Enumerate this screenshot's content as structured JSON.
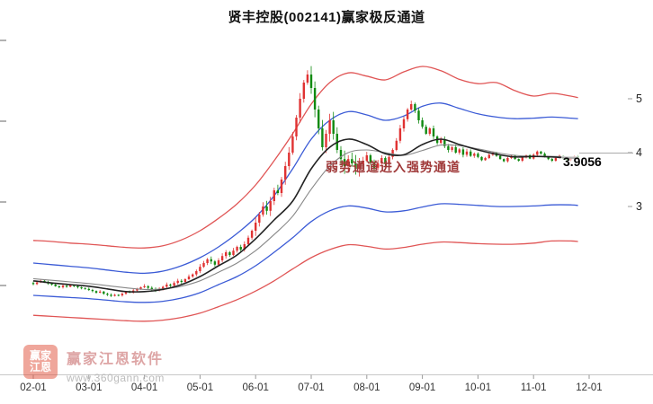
{
  "title": "贤丰控股(002141)赢家极反通道",
  "meta": {
    "stock_name": "贤丰控股",
    "stock_code": "002141",
    "indicator_name": "赢家极反通道"
  },
  "annotation": {
    "channel_signal": "弱势通道进入强势通道",
    "price_label": "3.9056"
  },
  "watermark": {
    "logo_rows": [
      "赢家",
      "江恩"
    ],
    "brand": "赢家江恩软件",
    "url": "www.360gann.com"
  },
  "colors": {
    "up_candle": "#e03232",
    "down_candle": "#108a10",
    "band_red": "#e05555",
    "band_blue": "#3b5bd6",
    "middle_dark": "#222222",
    "middle_gray": "#888888",
    "annotation_text": "#a03a3a",
    "watermark_logo": "#e0503a",
    "axis_line": "#c8c8c8",
    "axis_text": "#333333"
  },
  "chart_data": {
    "type": "candlestick",
    "title": "贤丰控股(002141)赢家极反通道",
    "x_tick_labels": [
      "02-01",
      "03-01",
      "04-01",
      "05-01",
      "06-01",
      "07-01",
      "08-01",
      "09-01",
      "10-01",
      "11-01",
      "12-01"
    ],
    "y_tick_labels": [
      "5",
      "4",
      "3"
    ],
    "y_tick_prices": [
      5,
      4,
      3
    ],
    "ylim": [
      0.6,
      6.2
    ],
    "grid": false,
    "legend": "none",
    "y_axis_side": "right",
    "candles_per_month": 15,
    "month_wick": [
      0.02,
      0.02,
      0.03,
      0.04,
      0.08,
      0.12,
      0.05,
      0.04,
      0.02,
      0.02
    ],
    "closes": [
      1.56,
      1.59,
      1.62,
      1.6,
      1.57,
      1.55,
      1.52,
      1.5,
      1.53,
      1.51,
      1.54,
      1.52,
      1.5,
      1.48,
      1.47,
      1.45,
      1.43,
      1.4,
      1.42,
      1.38,
      1.36,
      1.34,
      1.36,
      1.35,
      1.38,
      1.42,
      1.4,
      1.44,
      1.47,
      1.5,
      1.52,
      1.49,
      1.46,
      1.44,
      1.47,
      1.51,
      1.55,
      1.53,
      1.58,
      1.62,
      1.6,
      1.65,
      1.7,
      1.74,
      1.8,
      1.88,
      1.95,
      2.02,
      1.98,
      1.92,
      2.0,
      2.08,
      2.15,
      2.1,
      2.18,
      2.25,
      2.2,
      2.3,
      2.42,
      2.55,
      2.7,
      2.85,
      3.0,
      2.92,
      3.1,
      3.3,
      3.25,
      3.5,
      3.75,
      4.0,
      4.3,
      4.65,
      5.0,
      5.3,
      5.45,
      5.2,
      4.8,
      4.45,
      4.1,
      4.35,
      4.6,
      4.35,
      4.05,
      3.88,
      3.75,
      3.88,
      3.8,
      3.7,
      3.78,
      3.85,
      3.95,
      3.82,
      3.72,
      3.8,
      3.9,
      3.8,
      3.92,
      4.05,
      4.22,
      4.45,
      4.62,
      4.8,
      4.9,
      4.78,
      4.6,
      4.48,
      4.35,
      4.45,
      4.3,
      4.18,
      4.25,
      4.12,
      4.05,
      4.1,
      4.0,
      4.06,
      3.96,
      4.02,
      3.94,
      3.98,
      3.92,
      3.86,
      3.9,
      3.96,
      4.0,
      3.94,
      3.88,
      3.84,
      3.9,
      3.94,
      3.88,
      3.85,
      3.91,
      3.95,
      3.89,
      3.96,
      4.02,
      3.98,
      3.92,
      3.88,
      3.85,
      3.9,
      3.94,
      3.89,
      3.86,
      3.91,
      3.93,
      3.91
    ],
    "last_price": "3.9056",
    "bands": {
      "sample_step": 5,
      "red_upper": [
        2.37,
        2.35,
        2.32,
        2.3,
        2.27,
        2.24,
        2.23,
        2.27,
        2.38,
        2.55,
        2.78,
        3.05,
        3.4,
        3.85,
        4.35,
        4.9,
        5.3,
        5.48,
        5.42,
        5.35,
        5.5,
        5.6,
        5.52,
        5.36,
        5.28,
        5.3,
        5.15,
        5.05,
        5.1,
        5.05,
        5.02
      ],
      "blue_upper": [
        1.95,
        1.92,
        1.89,
        1.86,
        1.82,
        1.78,
        1.76,
        1.8,
        1.9,
        2.05,
        2.25,
        2.5,
        2.8,
        3.2,
        3.7,
        4.25,
        4.6,
        4.76,
        4.7,
        4.6,
        4.68,
        4.86,
        4.92,
        4.82,
        4.72,
        4.66,
        4.63,
        4.64,
        4.66,
        4.64,
        4.63
      ],
      "middle": [
        1.62,
        1.58,
        1.55,
        1.52,
        1.47,
        1.42,
        1.42,
        1.46,
        1.55,
        1.7,
        1.9,
        2.1,
        2.4,
        2.75,
        3.1,
        3.7,
        4.1,
        4.25,
        4.15,
        3.98,
        3.96,
        4.15,
        4.25,
        4.15,
        4.05,
        3.97,
        3.92,
        3.93,
        3.92,
        3.9,
        3.9
      ],
      "middle2": [
        1.66,
        1.63,
        1.6,
        1.57,
        1.53,
        1.49,
        1.46,
        1.47,
        1.52,
        1.62,
        1.78,
        1.95,
        2.18,
        2.48,
        2.82,
        3.32,
        3.75,
        4.0,
        4.05,
        4.0,
        3.95,
        4.04,
        4.14,
        4.13,
        4.07,
        4.0,
        3.95,
        3.93,
        3.93,
        3.92,
        3.92
      ],
      "blue_lower": [
        1.35,
        1.33,
        1.31,
        1.29,
        1.26,
        1.23,
        1.22,
        1.24,
        1.3,
        1.4,
        1.55,
        1.7,
        1.9,
        2.15,
        2.42,
        2.72,
        2.92,
        3.01,
        2.97,
        2.9,
        2.92,
        2.99,
        3.05,
        3.04,
        3.02,
        3.0,
        3.0,
        3.01,
        3.03,
        3.03,
        3.02
      ],
      "red_lower": [
        0.98,
        0.96,
        0.94,
        0.92,
        0.9,
        0.88,
        0.87,
        0.89,
        0.94,
        1.02,
        1.14,
        1.27,
        1.43,
        1.62,
        1.84,
        2.05,
        2.2,
        2.29,
        2.26,
        2.21,
        2.24,
        2.3,
        2.34,
        2.33,
        2.31,
        2.3,
        2.3,
        2.32,
        2.36,
        2.36,
        2.35
      ]
    }
  }
}
